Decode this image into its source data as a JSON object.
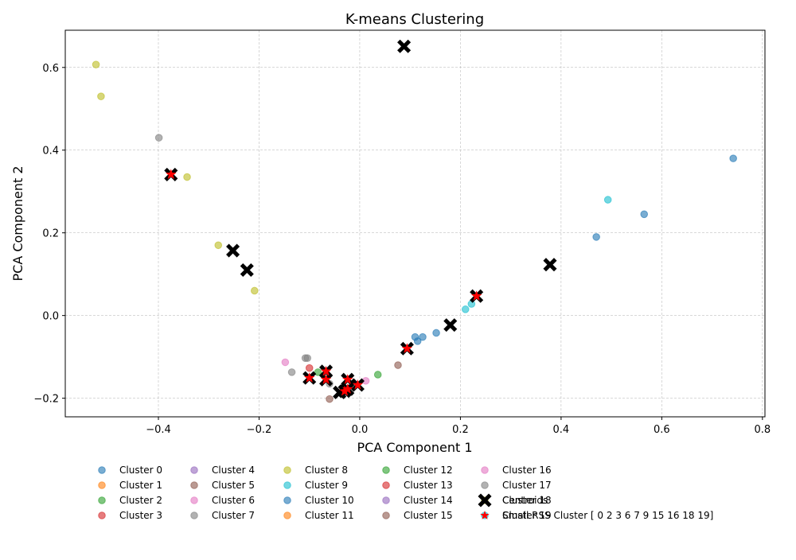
{
  "chart_data": {
    "type": "scatter",
    "title": "K-means Clustering",
    "xlabel": "PCA Component 1",
    "ylabel": "PCA Component 2",
    "xlim": [
      -0.585,
      0.805
    ],
    "ylim": [
      -0.245,
      0.69
    ],
    "xticks": [
      -0.4,
      -0.2,
      0.0,
      0.2,
      0.4,
      0.6,
      0.8
    ],
    "xtick_labels": [
      "−0.4",
      "−0.2",
      "0.0",
      "0.2",
      "0.4",
      "0.6",
      "0.8"
    ],
    "yticks": [
      -0.2,
      0.0,
      0.2,
      0.4,
      0.6
    ],
    "ytick_labels": [
      "−0.2",
      "0.0",
      "0.2",
      "0.4",
      "0.6"
    ],
    "grid": true,
    "legend_position": "below plot",
    "series": [
      {
        "name": "Cluster 0",
        "color": "#1f77b4",
        "points": [
          [
            0.47,
            0.19
          ],
          [
            0.565,
            0.245
          ],
          [
            0.742,
            0.38
          ],
          [
            0.11,
            -0.052
          ],
          [
            0.115,
            -0.062
          ],
          [
            0.125,
            -0.052
          ],
          [
            0.152,
            -0.042
          ]
        ]
      },
      {
        "name": "Cluster 1",
        "color": "#ff7f0e",
        "points": []
      },
      {
        "name": "Cluster 2",
        "color": "#2ca02c",
        "points": [
          [
            -0.083,
            -0.137
          ],
          [
            0.036,
            -0.143
          ]
        ]
      },
      {
        "name": "Cluster 3",
        "color": "#d62728",
        "points": [
          [
            -0.1,
            -0.127
          ]
        ]
      },
      {
        "name": "Cluster 4",
        "color": "#9467bd",
        "points": []
      },
      {
        "name": "Cluster 5",
        "color": "#8c564b",
        "points": [
          [
            -0.06,
            -0.202
          ],
          [
            0.076,
            -0.12
          ]
        ]
      },
      {
        "name": "Cluster 6",
        "color": "#e377c2",
        "points": [
          [
            -0.148,
            -0.113
          ]
        ]
      },
      {
        "name": "Cluster 7",
        "color": "#7f7f7f",
        "points": [
          [
            -0.399,
            0.43
          ],
          [
            -0.108,
            -0.103
          ],
          [
            -0.135,
            -0.137
          ]
        ]
      },
      {
        "name": "Cluster 8",
        "color": "#bcbd22",
        "points": [
          [
            -0.524,
            0.607
          ],
          [
            -0.514,
            0.53
          ],
          [
            -0.343,
            0.335
          ],
          [
            -0.281,
            0.17
          ],
          [
            -0.209,
            0.06
          ]
        ]
      },
      {
        "name": "Cluster 9",
        "color": "#17becf",
        "points": [
          [
            0.493,
            0.28
          ],
          [
            0.21,
            0.015
          ],
          [
            0.222,
            0.028
          ]
        ]
      },
      {
        "name": "Cluster 10",
        "color": "#1f77b4",
        "points": []
      },
      {
        "name": "Cluster 11",
        "color": "#ff7f0e",
        "points": []
      },
      {
        "name": "Cluster 12",
        "color": "#2ca02c",
        "points": []
      },
      {
        "name": "Cluster 13",
        "color": "#d62728",
        "points": []
      },
      {
        "name": "Cluster 14",
        "color": "#9467bd",
        "points": []
      },
      {
        "name": "Cluster 15",
        "color": "#8c564b",
        "points": [
          [
            -0.035,
            -0.19
          ]
        ]
      },
      {
        "name": "Cluster 16",
        "color": "#e377c2",
        "points": [
          [
            0.012,
            -0.158
          ]
        ]
      },
      {
        "name": "Cluster 17",
        "color": "#7f7f7f",
        "points": [
          [
            -0.104,
            -0.103
          ],
          [
            -0.06,
            -0.165
          ]
        ]
      },
      {
        "name": "Cluster 18",
        "color": "#bcbd22",
        "points": []
      },
      {
        "name": "Cluster 19",
        "color": "#17becf",
        "points": []
      }
    ],
    "centroids": {
      "name": "Centroids",
      "color": "#000000",
      "points": [
        [
          0.088,
          0.651
        ],
        [
          -0.375,
          0.341
        ],
        [
          -0.252,
          0.157
        ],
        [
          -0.224,
          0.11
        ],
        [
          0.378,
          0.123
        ],
        [
          0.232,
          0.047
        ],
        [
          0.18,
          -0.023
        ],
        [
          0.094,
          -0.08
        ],
        [
          -0.067,
          -0.135
        ],
        [
          -0.067,
          -0.155
        ],
        [
          -0.1,
          -0.151
        ],
        [
          -0.024,
          -0.155
        ],
        [
          -0.024,
          -0.178
        ],
        [
          -0.004,
          -0.168
        ],
        [
          -0.04,
          -0.186
        ],
        [
          -0.03,
          -0.183
        ]
      ]
    },
    "small_rss": {
      "name": "Small RSS Cluster [ 0  2  3  6  7  9 15 16 18 19]",
      "color": "#ff0000",
      "points": [
        [
          -0.375,
          0.341
        ],
        [
          0.232,
          0.047
        ],
        [
          0.094,
          -0.08
        ],
        [
          -0.067,
          -0.135
        ],
        [
          -0.067,
          -0.155
        ],
        [
          -0.1,
          -0.151
        ],
        [
          -0.024,
          -0.155
        ],
        [
          -0.024,
          -0.178
        ],
        [
          -0.004,
          -0.168
        ],
        [
          -0.03,
          -0.183
        ]
      ]
    }
  }
}
